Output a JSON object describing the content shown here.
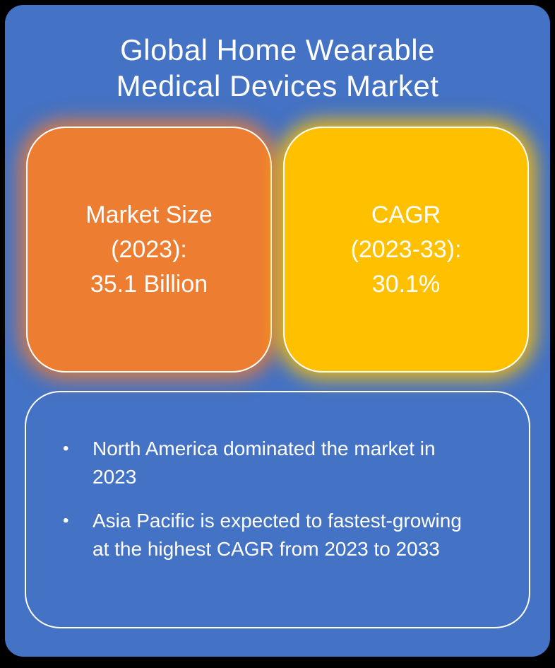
{
  "title": {
    "line1": "Global Home Wearable",
    "line2": "Medical Devices Market"
  },
  "cards": {
    "market_size": {
      "line1": "Market Size",
      "line2": "(2023):",
      "line3": "35.1 Billion"
    },
    "cagr": {
      "line1": "CAGR",
      "line2": "(2023-33):",
      "line3": "30.1%"
    }
  },
  "notes": {
    "bullet_marker": "•",
    "bullets": [
      "North America dominated the market in 2023",
      "Asia Pacific is expected to fastest-growing at the highest CAGR from 2023 to 2033"
    ]
  },
  "colors": {
    "frame": "#000000",
    "background": "#4472C4",
    "card_market_size": "#ED7D31",
    "card_cagr": "#FFC000",
    "text": "#FFFFFF"
  }
}
